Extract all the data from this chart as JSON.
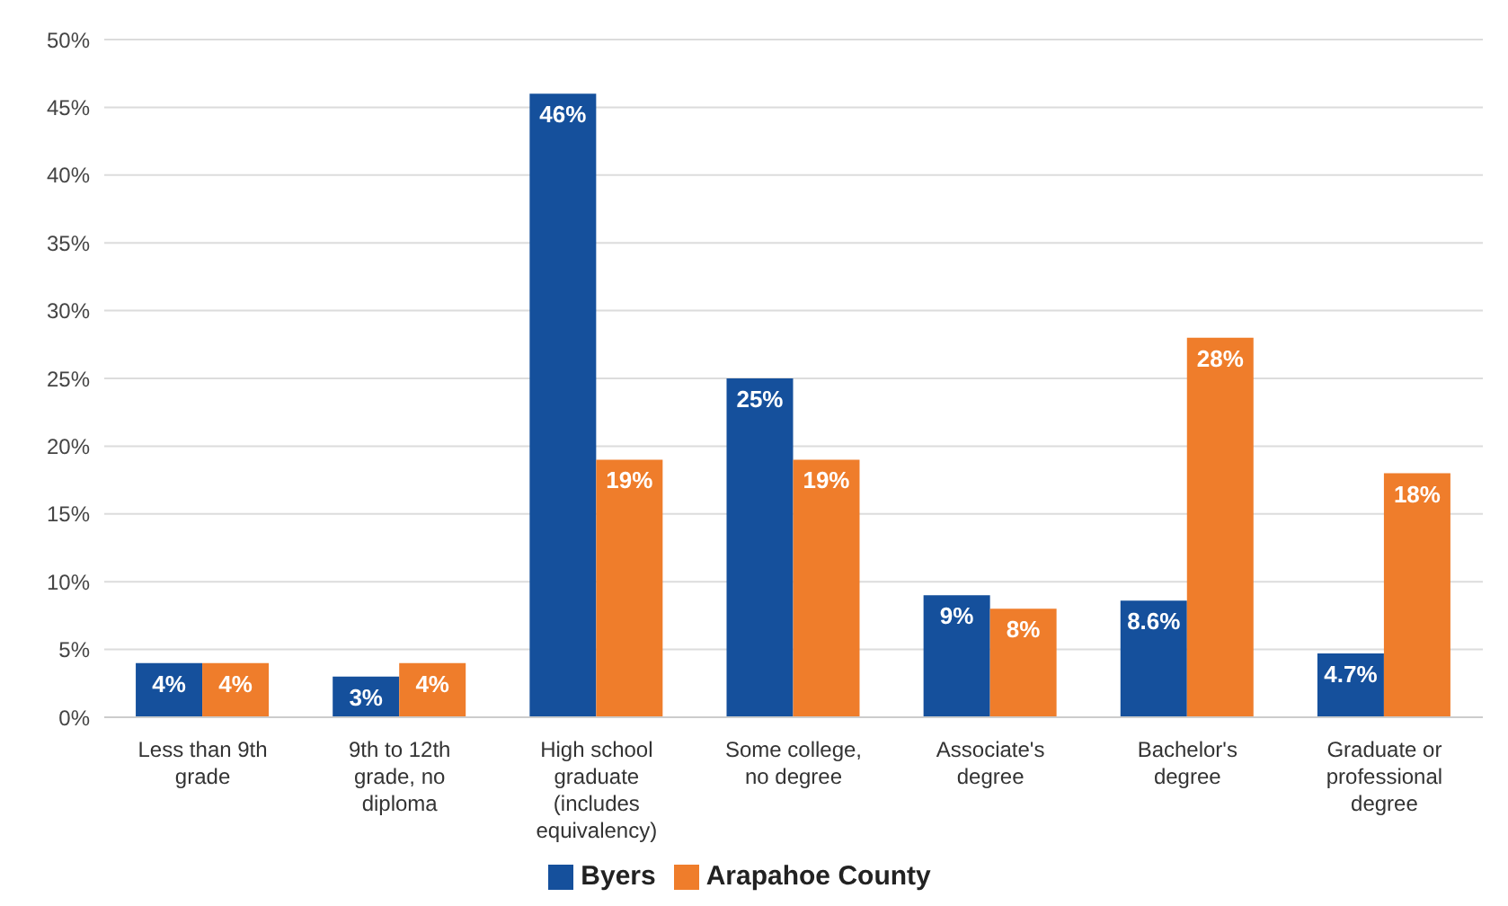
{
  "chart_data": {
    "type": "bar",
    "categories": [
      "Less than 9th grade",
      "9th to 12th grade, no diploma",
      "High school graduate (includes equivalency)",
      "Some college, no degree",
      "Associate's degree",
      "Bachelor's degree",
      "Graduate or professional degree"
    ],
    "series": [
      {
        "name": "Byers",
        "color": "#15509c",
        "values": [
          4,
          3,
          46,
          25,
          9,
          8.6,
          4.7
        ],
        "value_labels": [
          "4%",
          "3%",
          "46%",
          "25%",
          "9%",
          "8.6%",
          "4.7%"
        ]
      },
      {
        "name": "Arapahoe County",
        "color": "#ef7d2b",
        "values": [
          4,
          4,
          19,
          19,
          8,
          28,
          18
        ],
        "value_labels": [
          "4%",
          "4%",
          "19%",
          "19%",
          "8%",
          "28%",
          "18%"
        ]
      }
    ],
    "ylim": [
      0,
      50
    ],
    "yticks": [
      {
        "value": 0,
        "label": "0%"
      },
      {
        "value": 5,
        "label": "5%"
      },
      {
        "value": 10,
        "label": "10%"
      },
      {
        "value": 15,
        "label": "15%"
      },
      {
        "value": 20,
        "label": "20%"
      },
      {
        "value": 25,
        "label": "25%"
      },
      {
        "value": 30,
        "label": "30%"
      },
      {
        "value": 35,
        "label": "35%"
      },
      {
        "value": 40,
        "label": "40%"
      },
      {
        "value": 45,
        "label": "45%"
      },
      {
        "value": 50,
        "label": "50%"
      }
    ],
    "grid": "y",
    "legend": "bottom"
  }
}
